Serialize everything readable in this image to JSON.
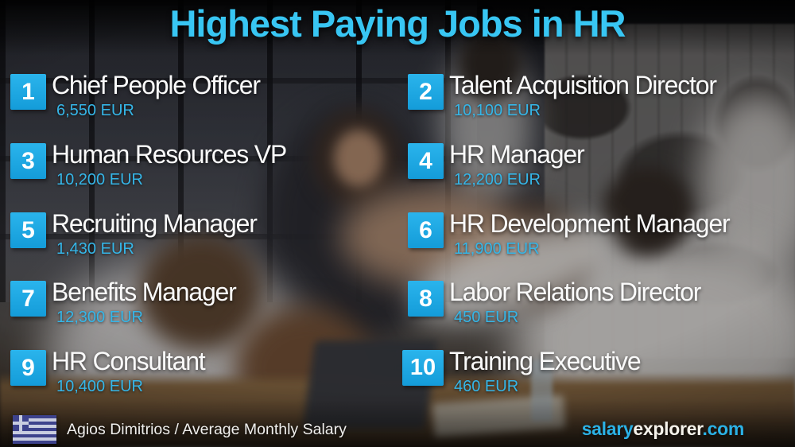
{
  "title": "Highest Paying Jobs in HR",
  "jobs": [
    {
      "rank": "1",
      "title": "Chief People Officer",
      "salary": "6,550 EUR"
    },
    {
      "rank": "2",
      "title": "Talent Acquisition Director",
      "salary": "10,100 EUR"
    },
    {
      "rank": "3",
      "title": "Human Resources VP",
      "salary": "10,200 EUR"
    },
    {
      "rank": "4",
      "title": "HR Manager",
      "salary": "12,200 EUR"
    },
    {
      "rank": "5",
      "title": "Recruiting Manager",
      "salary": "1,430 EUR"
    },
    {
      "rank": "6",
      "title": "HR Development Manager",
      "salary": "11,900 EUR"
    },
    {
      "rank": "7",
      "title": "Benefits Manager",
      "salary": "12,300 EUR"
    },
    {
      "rank": "8",
      "title": "Labor Relations Director",
      "salary": "450 EUR"
    },
    {
      "rank": "9",
      "title": "HR Consultant",
      "salary": "10,400 EUR"
    },
    {
      "rank": "10",
      "title": "Training Executive",
      "salary": "460 EUR"
    }
  ],
  "footer": {
    "flag": "greece-flag",
    "caption": "Agios Dimitrios / Average Monthly Salary",
    "brand": {
      "part1": "salary",
      "part2": "explorer",
      "part3": ".com"
    }
  },
  "colors": {
    "accent_cyan": "#29abe2",
    "title_cyan": "#38c6f3",
    "salary_cyan": "#35b6e8",
    "job_text": "#fafafa",
    "flag_blue": "#3d428c"
  },
  "chart_data": {
    "type": "table",
    "title": "Highest Paying Jobs in HR",
    "unit": "EUR (average monthly salary)",
    "location": "Agios Dimitrios",
    "categories": [
      "Chief People Officer",
      "Talent Acquisition Director",
      "Human Resources VP",
      "HR Manager",
      "Recruiting Manager",
      "HR Development Manager",
      "Benefits Manager",
      "Labor Relations Director",
      "HR Consultant",
      "Training Executive"
    ],
    "values": [
      6550,
      10100,
      10200,
      12200,
      1430,
      11900,
      12300,
      450,
      10400,
      460
    ],
    "ranks": [
      1,
      2,
      3,
      4,
      5,
      6,
      7,
      8,
      9,
      10
    ],
    "source": "salaryexplorer.com"
  }
}
